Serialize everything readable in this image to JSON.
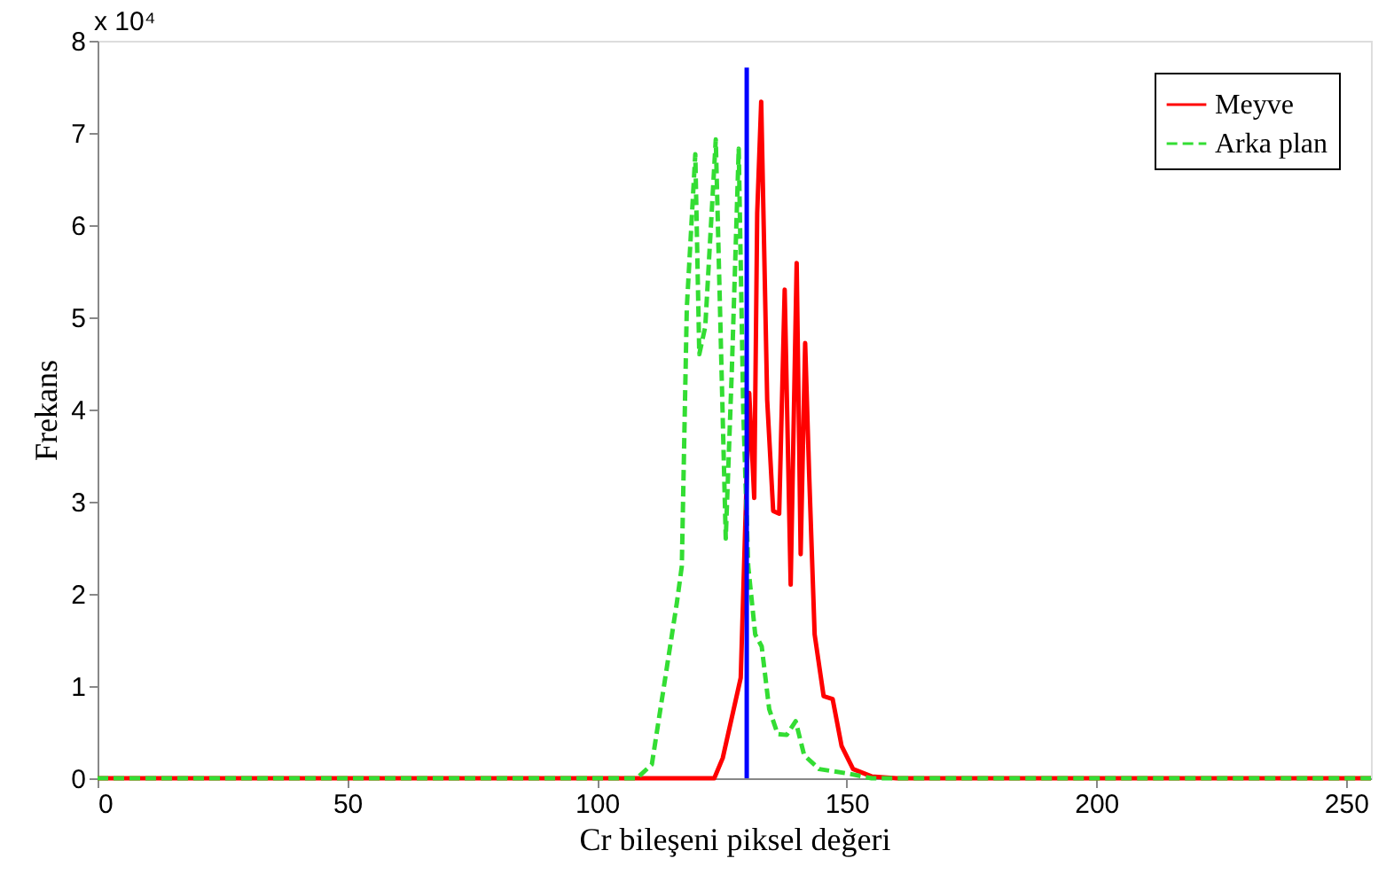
{
  "chart_data": {
    "type": "line",
    "xlabel": "Cr bileşeni piksel değeri",
    "ylabel": "Frekans",
    "annotations": [
      "x 10⁴"
    ],
    "xlim": [
      0,
      255
    ],
    "xticks": [
      0,
      50,
      100,
      150,
      200,
      250
    ],
    "ylim": [
      0,
      8
    ],
    "yticks": [
      0,
      1,
      2,
      3,
      4,
      5,
      6,
      7,
      8
    ],
    "grid": false,
    "legend": "top right",
    "marker": "none",
    "series": [
      {
        "name": "Meyve",
        "color": "#ff0000",
        "line_style": "solid",
        "x": [
          0,
          123.5,
          125.2,
          128.8,
          130.5,
          131.5,
          132.1,
          132.9,
          134.1,
          135.3,
          136.5,
          137.6,
          138.8,
          140,
          140.8,
          141.7,
          142.5,
          143.6,
          145.4,
          147.2,
          149,
          151.3,
          155,
          160,
          255
        ],
        "values": [
          0,
          0,
          0.22,
          1.09,
          4.18,
          3.04,
          6.13,
          7.34,
          4.1,
          2.9,
          2.87,
          5.3,
          2.1,
          5.59,
          2.43,
          4.72,
          3.3,
          1.56,
          0.89,
          0.86,
          0.35,
          0.1,
          0.02,
          0,
          0
        ]
      },
      {
        "name": "Arka plan",
        "color": "#33dd33",
        "line_style": "dashed",
        "x": [
          0,
          108,
          111,
          116,
          117,
          118,
          119.7,
          120.5,
          121.7,
          123.8,
          125.8,
          127,
          128.4,
          129.3,
          130.3,
          131.7,
          133,
          134.5,
          136.2,
          138,
          139.8,
          141.5,
          144.5,
          150.4,
          155,
          255
        ],
        "values": [
          0,
          0,
          0.15,
          1.9,
          2.3,
          5.1,
          6.77,
          4.6,
          4.9,
          6.93,
          2.6,
          4.4,
          6.83,
          4.0,
          2.3,
          1.56,
          1.43,
          0.75,
          0.48,
          0.47,
          0.62,
          0.25,
          0.1,
          0.05,
          0,
          0
        ]
      },
      {
        "color": "#0000ff",
        "line_style": "solid",
        "x": [
          130,
          130
        ],
        "values": [
          0,
          7.71
        ]
      }
    ]
  }
}
